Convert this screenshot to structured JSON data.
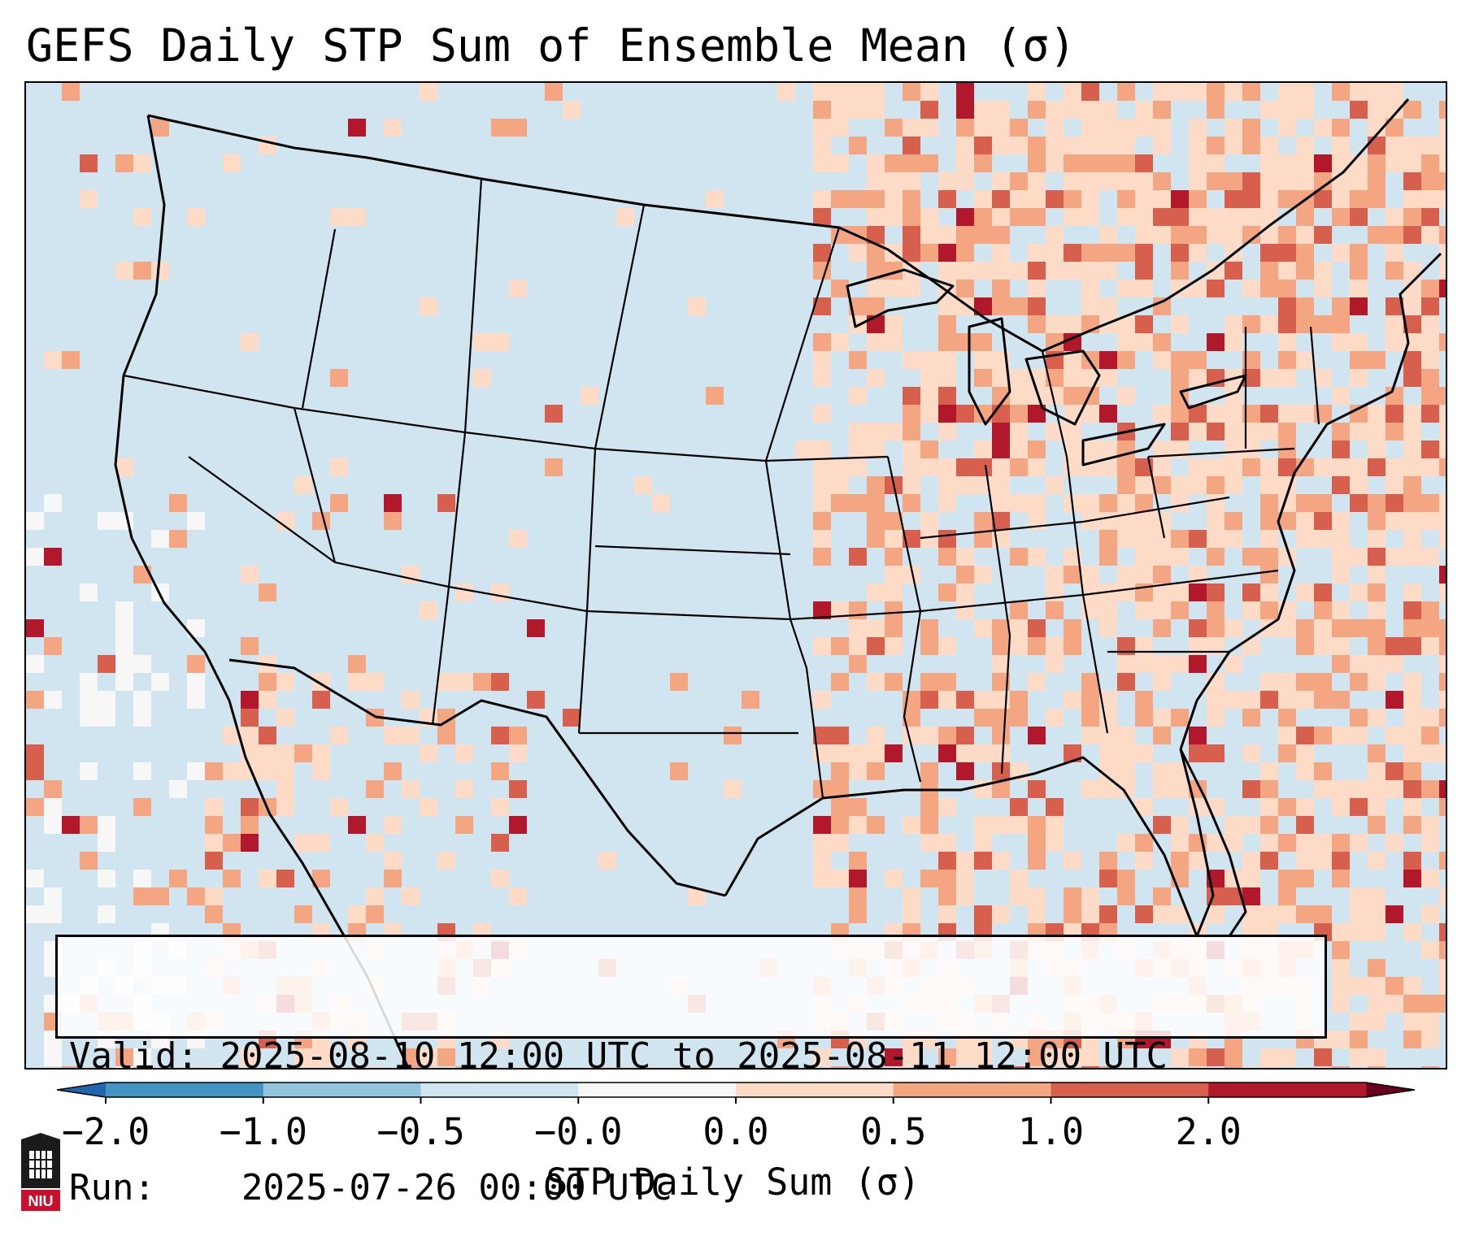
{
  "title": "GEFS Daily STP Sum of Ensemble Mean (σ)",
  "info": {
    "valid_label": "Valid:",
    "valid_value": "2025-08-10 12:00 UTC to 2025-08-11 12:00 UTC",
    "run_label": "Run:",
    "run_value": "2025-07-26 00:00 UTC"
  },
  "colorbar": {
    "label": "STP Daily Sum (σ)",
    "ticks": [
      "−2.0",
      "−1.0",
      "−0.5",
      "−0.0",
      "0.0",
      "0.5",
      "1.0",
      "2.0"
    ],
    "colors": [
      "#4393c3",
      "#92c5de",
      "#d1e5f0",
      "#f7f7f7",
      "#fddbc7",
      "#f4a582",
      "#d6604d",
      "#b2182b"
    ],
    "extend": "both"
  },
  "map": {
    "region": "Contiguous United States",
    "ocean_color": "#d1e5f0",
    "land_color": "#d1e5f0",
    "border_color": "#000000"
  },
  "logo": {
    "text": "NIU",
    "icon": "university-seal-icon"
  }
}
